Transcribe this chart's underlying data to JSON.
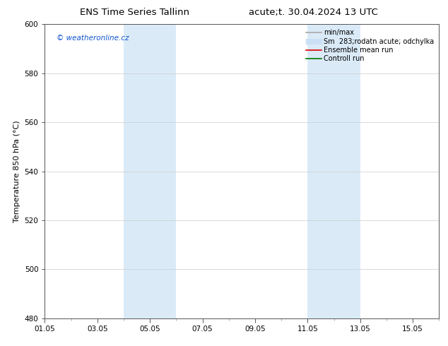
{
  "title_left": "ENS Time Series Tallinn",
  "title_right": "acute;t. 30.04.2024 13 UTC",
  "ylabel": "Temperature 850 hPa (°C)",
  "ylim": [
    480,
    600
  ],
  "yticks": [
    480,
    500,
    520,
    540,
    560,
    580,
    600
  ],
  "xlim": [
    0,
    15
  ],
  "xtick_labels": [
    "01.05",
    "03.05",
    "05.05",
    "07.05",
    "09.05",
    "11.05",
    "13.05",
    "15.05"
  ],
  "xtick_positions_days": [
    0,
    2,
    4,
    6,
    8,
    10,
    12,
    14
  ],
  "shaded_regions": [
    {
      "start_day": 3.0,
      "end_day": 5.0,
      "color": "#daeaf7"
    },
    {
      "start_day": 10.0,
      "end_day": 12.0,
      "color": "#daeaf7"
    }
  ],
  "watermark_text": "© weatheronline.cz",
  "watermark_color": "#1155cc",
  "legend_entries": [
    {
      "label": "min/max",
      "color": "#aaaaaa",
      "lw": 1.2,
      "patch": false
    },
    {
      "label": "Sm  283;rodatn acute; odchylka",
      "color": "#cce0f5",
      "lw": 6,
      "patch": true
    },
    {
      "label": "Ensemble mean run",
      "color": "#dd0000",
      "lw": 1.2,
      "patch": false
    },
    {
      "label": "Controll run",
      "color": "#007700",
      "lw": 1.2,
      "patch": false
    }
  ],
  "background_color": "#ffffff",
  "grid_color": "#cccccc",
  "border_color": "#555555",
  "title_fontsize": 9.5,
  "axis_label_fontsize": 8,
  "tick_fontsize": 7.5,
  "legend_fontsize": 7,
  "watermark_fontsize": 7.5
}
